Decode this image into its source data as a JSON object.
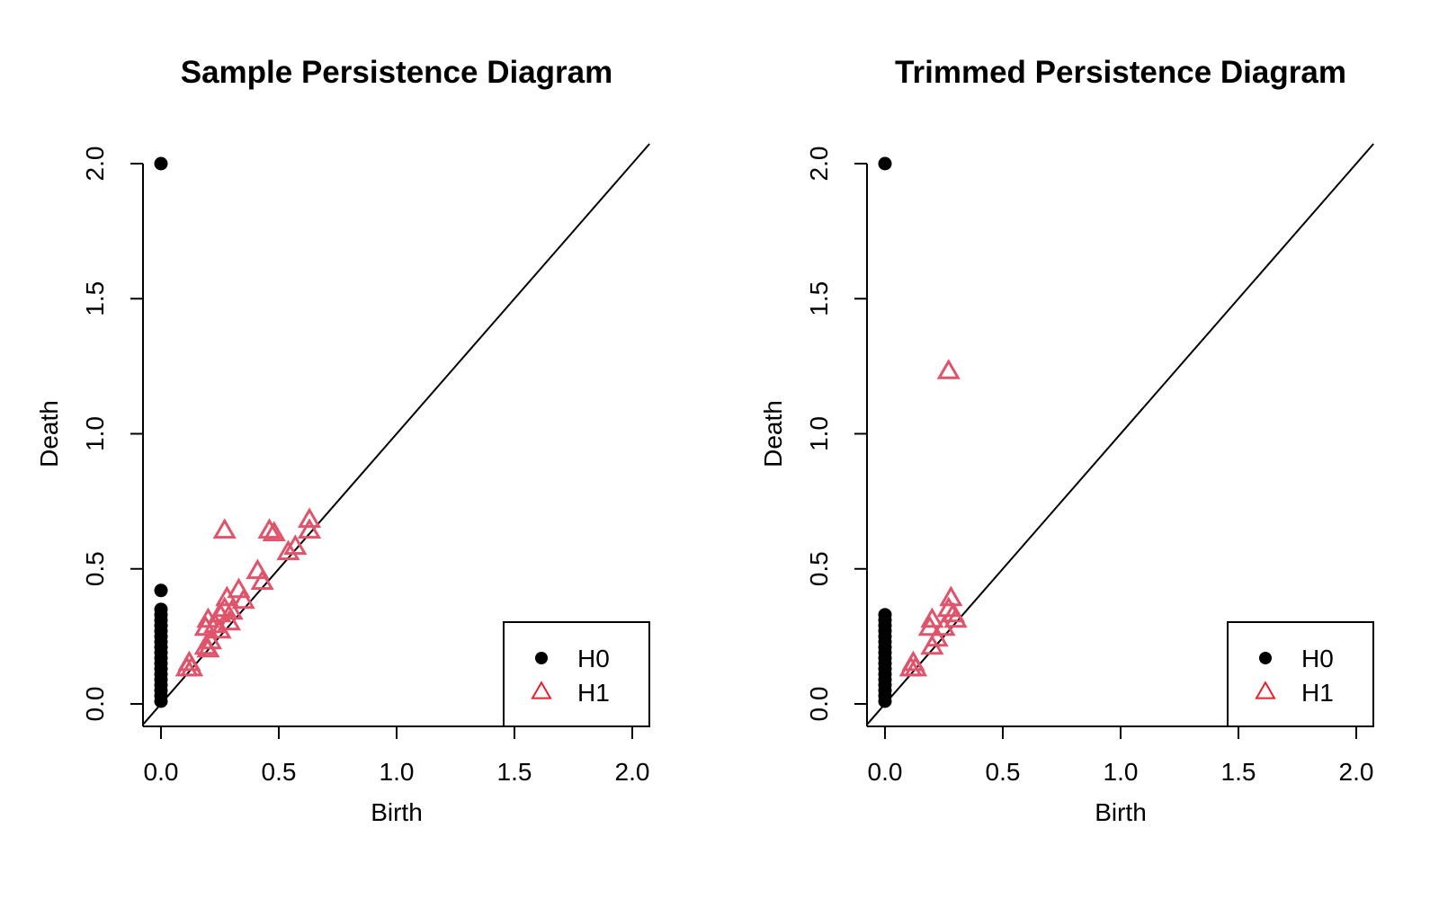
{
  "colors": {
    "h0": "#000000",
    "h1": "#DF536B",
    "h1_legend": "#E8202E",
    "axis": "#000000"
  },
  "chart_data": [
    {
      "type": "scatter",
      "title": "Sample Persistence Diagram",
      "xlabel": "Birth",
      "ylabel": "Death",
      "xlim": [
        0,
        2
      ],
      "ylim": [
        0,
        2
      ],
      "xticks": [
        "0.0",
        "0.5",
        "1.0",
        "1.5",
        "2.0"
      ],
      "yticks": [
        "0.0",
        "0.5",
        "1.0",
        "1.5",
        "2.0"
      ],
      "diagonal": true,
      "legend": {
        "position": "bottom-right",
        "entries": [
          "H0",
          "H1"
        ]
      },
      "series": [
        {
          "name": "H0",
          "marker": "filled-circle",
          "points": [
            [
              0,
              2.0
            ],
            [
              0,
              0.42
            ],
            [
              0,
              0.35
            ],
            [
              0,
              0.33
            ],
            [
              0,
              0.31
            ],
            [
              0,
              0.29
            ],
            [
              0,
              0.27
            ],
            [
              0,
              0.25
            ],
            [
              0,
              0.23
            ],
            [
              0,
              0.21
            ],
            [
              0,
              0.19
            ],
            [
              0,
              0.17
            ],
            [
              0,
              0.15
            ],
            [
              0,
              0.13
            ],
            [
              0,
              0.11
            ],
            [
              0,
              0.09
            ],
            [
              0,
              0.07
            ],
            [
              0,
              0.05
            ],
            [
              0,
              0.03
            ],
            [
              0,
              0.01
            ]
          ]
        },
        {
          "name": "H1",
          "marker": "open-triangle",
          "points": [
            [
              0.27,
              0.64
            ],
            [
              0.46,
              0.64
            ],
            [
              0.48,
              0.63
            ],
            [
              0.63,
              0.68
            ],
            [
              0.63,
              0.64
            ],
            [
              0.57,
              0.58
            ],
            [
              0.54,
              0.56
            ],
            [
              0.41,
              0.49
            ],
            [
              0.43,
              0.45
            ],
            [
              0.33,
              0.42
            ],
            [
              0.35,
              0.38
            ],
            [
              0.28,
              0.39
            ],
            [
              0.27,
              0.35
            ],
            [
              0.25,
              0.33
            ],
            [
              0.3,
              0.34
            ],
            [
              0.2,
              0.31
            ],
            [
              0.19,
              0.28
            ],
            [
              0.23,
              0.29
            ],
            [
              0.29,
              0.3
            ],
            [
              0.25,
              0.27
            ],
            [
              0.21,
              0.23
            ],
            [
              0.19,
              0.21
            ],
            [
              0.2,
              0.2
            ],
            [
              0.12,
              0.15
            ],
            [
              0.13,
              0.13
            ],
            [
              0.11,
              0.13
            ]
          ]
        }
      ]
    },
    {
      "type": "scatter",
      "title": "Trimmed Persistence Diagram",
      "xlabel": "Birth",
      "ylabel": "Death",
      "xlim": [
        0,
        2
      ],
      "ylim": [
        0,
        2
      ],
      "xticks": [
        "0.0",
        "0.5",
        "1.0",
        "1.5",
        "2.0"
      ],
      "yticks": [
        "0.0",
        "0.5",
        "1.0",
        "1.5",
        "2.0"
      ],
      "diagonal": true,
      "legend": {
        "position": "bottom-right",
        "entries": [
          "H0",
          "H1"
        ]
      },
      "series": [
        {
          "name": "H0",
          "marker": "filled-circle",
          "points": [
            [
              0,
              2.0
            ],
            [
              0,
              0.33
            ],
            [
              0,
              0.31
            ],
            [
              0,
              0.29
            ],
            [
              0,
              0.27
            ],
            [
              0,
              0.25
            ],
            [
              0,
              0.23
            ],
            [
              0,
              0.21
            ],
            [
              0,
              0.19
            ],
            [
              0,
              0.17
            ],
            [
              0,
              0.15
            ],
            [
              0,
              0.13
            ],
            [
              0,
              0.11
            ],
            [
              0,
              0.09
            ],
            [
              0,
              0.07
            ],
            [
              0,
              0.05
            ],
            [
              0,
              0.03
            ],
            [
              0,
              0.01
            ]
          ]
        },
        {
          "name": "H1",
          "marker": "open-triangle",
          "points": [
            [
              0.27,
              1.23
            ],
            [
              0.28,
              0.39
            ],
            [
              0.27,
              0.35
            ],
            [
              0.29,
              0.33
            ],
            [
              0.3,
              0.31
            ],
            [
              0.2,
              0.31
            ],
            [
              0.19,
              0.28
            ],
            [
              0.25,
              0.28
            ],
            [
              0.22,
              0.24
            ],
            [
              0.2,
              0.21
            ],
            [
              0.12,
              0.15
            ],
            [
              0.13,
              0.13
            ],
            [
              0.11,
              0.13
            ]
          ]
        }
      ]
    }
  ]
}
